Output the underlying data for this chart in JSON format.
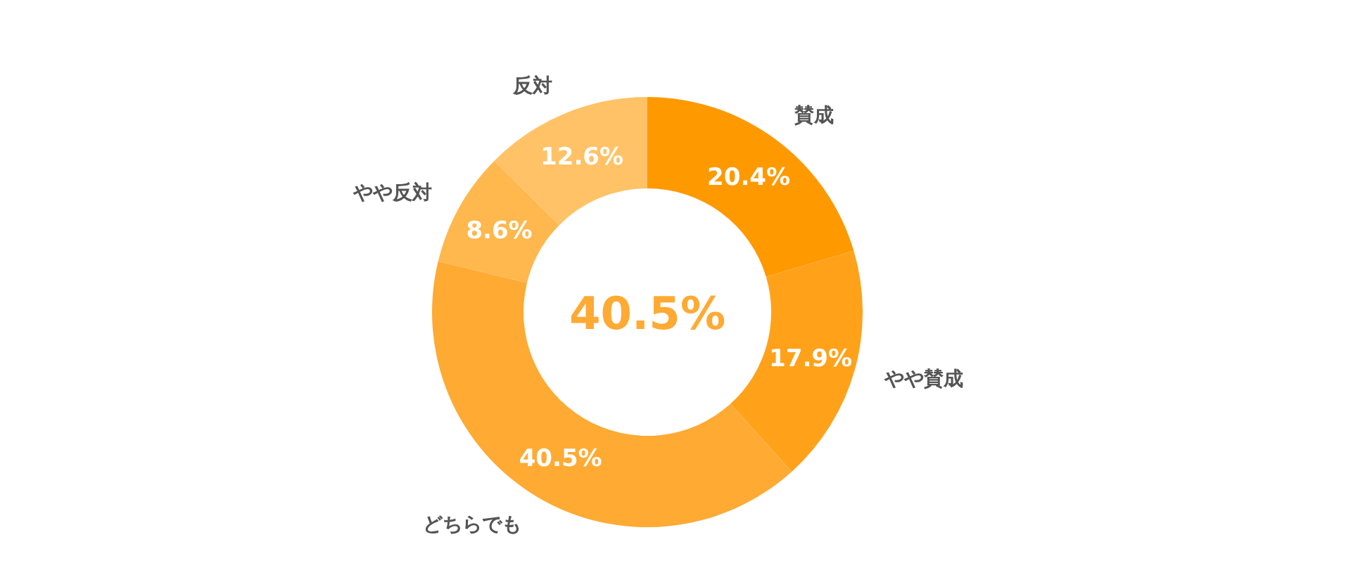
{
  "chart_data": {
    "type": "donut",
    "categories": [
      "賛成",
      "やや賛成",
      "どちらでも",
      "やや反対",
      "反対"
    ],
    "values": [
      20.4,
      17.9,
      40.5,
      8.6,
      12.6
    ],
    "colors": [
      "#ff9900",
      "#ffa21a",
      "#ffaa33",
      "#ffb84d",
      "#ffc266"
    ],
    "value_labels": [
      "20.4%",
      "17.9%",
      "40.5%",
      "8.6%",
      "12.6%"
    ],
    "annotations": [
      "40.5%"
    ]
  }
}
